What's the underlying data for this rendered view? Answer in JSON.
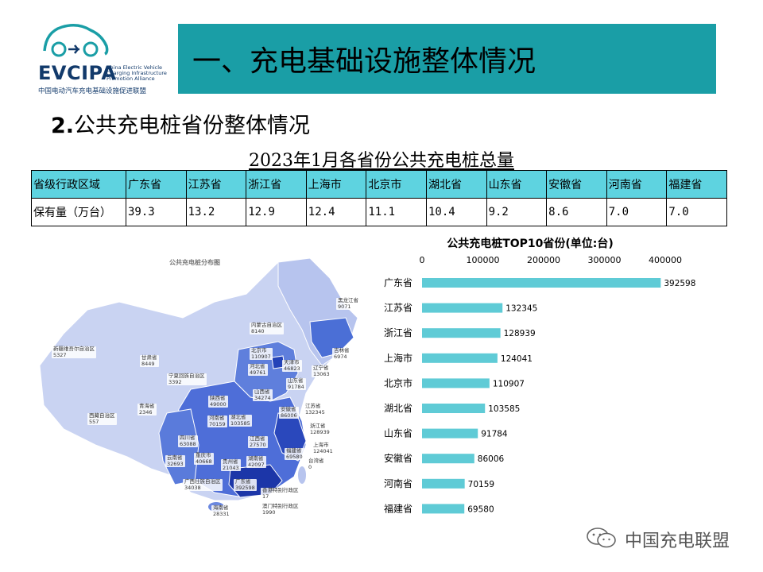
{
  "logo": {
    "brand": "EVCIPA",
    "brand_en": "China Electric Vehicle Charging Infrastructure Promotion Alliance",
    "brand_cn": "中国电动汽车充电基础设施促进联盟"
  },
  "header": {
    "title": "一、充电基础设施整体情况"
  },
  "subtitle": {
    "number": "2.",
    "text": "公共充电桩省份整体情况"
  },
  "table": {
    "title": "2023年1月各省份公共充电桩总量",
    "header_label": "省级行政区域",
    "row_label": "保有量（万台）",
    "provinces": [
      "广东省",
      "江苏省",
      "浙江省",
      "上海市",
      "北京市",
      "湖北省",
      "山东省",
      "安徽省",
      "河南省",
      "福建省"
    ],
    "values": [
      "39.3",
      "13.2",
      "12.9",
      "12.4",
      "11.1",
      "10.4",
      "9.2",
      "8.6",
      "7.0",
      "7.0"
    ]
  },
  "map": {
    "title": "公共充电桩分布图",
    "labels": [
      {
        "name": "黑龙江省",
        "value": "9071"
      },
      {
        "name": "吉林省",
        "value": "6974"
      },
      {
        "name": "辽宁省",
        "value": "13063"
      },
      {
        "name": "内蒙古自治区",
        "value": "8140"
      },
      {
        "name": "新疆维吾尔自治区",
        "value": "5327"
      },
      {
        "name": "甘肃省",
        "value": "8449"
      },
      {
        "name": "北京市",
        "value": "110907"
      },
      {
        "name": "天津市",
        "value": "46823"
      },
      {
        "name": "河北省",
        "value": "49761"
      },
      {
        "name": "山东省",
        "value": "91784"
      },
      {
        "name": "宁夏回族自治区",
        "value": "3392"
      },
      {
        "name": "山西省",
        "value": "34274"
      },
      {
        "name": "陕西省",
        "value": "49000"
      },
      {
        "name": "江苏省",
        "value": "132345"
      },
      {
        "name": "青海省",
        "value": "2346"
      },
      {
        "name": "河南省",
        "value": "70159"
      },
      {
        "name": "安徽省",
        "value": "86006"
      },
      {
        "name": "西藏自治区",
        "value": "557"
      },
      {
        "name": "湖北省",
        "value": "103585"
      },
      {
        "name": "浙江省",
        "value": "128939"
      },
      {
        "name": "上海市",
        "value": "124041"
      },
      {
        "name": "四川省",
        "value": "63088"
      },
      {
        "name": "江西省",
        "value": "27570"
      },
      {
        "name": "重庆市",
        "value": "40668"
      },
      {
        "name": "福建省",
        "value": "69580"
      },
      {
        "name": "台湾省",
        "value": "0"
      },
      {
        "name": "云南省",
        "value": "32693"
      },
      {
        "name": "贵州省",
        "value": "21043"
      },
      {
        "name": "湖南省",
        "value": "42097"
      },
      {
        "name": "广西壮族自治区",
        "value": "34038"
      },
      {
        "name": "广东省",
        "value": "392598"
      },
      {
        "name": "香港特别行政区",
        "value": "17"
      },
      {
        "name": "海南省",
        "value": "28331"
      },
      {
        "name": "澳门特别行政区",
        "value": "1990"
      }
    ]
  },
  "chart_data": {
    "type": "bar",
    "orientation": "horizontal",
    "title": "公共充电桩TOP10省份(单位:台)",
    "categories": [
      "广东省",
      "江苏省",
      "浙江省",
      "上海市",
      "北京市",
      "湖北省",
      "山东省",
      "安徽省",
      "河南省",
      "福建省"
    ],
    "values": [
      392598,
      132345,
      128939,
      124041,
      110907,
      103585,
      91784,
      86006,
      70159,
      69580
    ],
    "xlim": [
      0,
      400000
    ],
    "xticks": [
      "0",
      "100000",
      "200000",
      "300000",
      "400000"
    ],
    "xaxis_position": "top",
    "grid": false,
    "bar_color": "#5fcbd6"
  },
  "watermark": {
    "text": "中国充电联盟"
  },
  "colors": {
    "banner": "#1a9ea6",
    "table_header": "#5ed3e0",
    "bar": "#5fcbd6"
  }
}
